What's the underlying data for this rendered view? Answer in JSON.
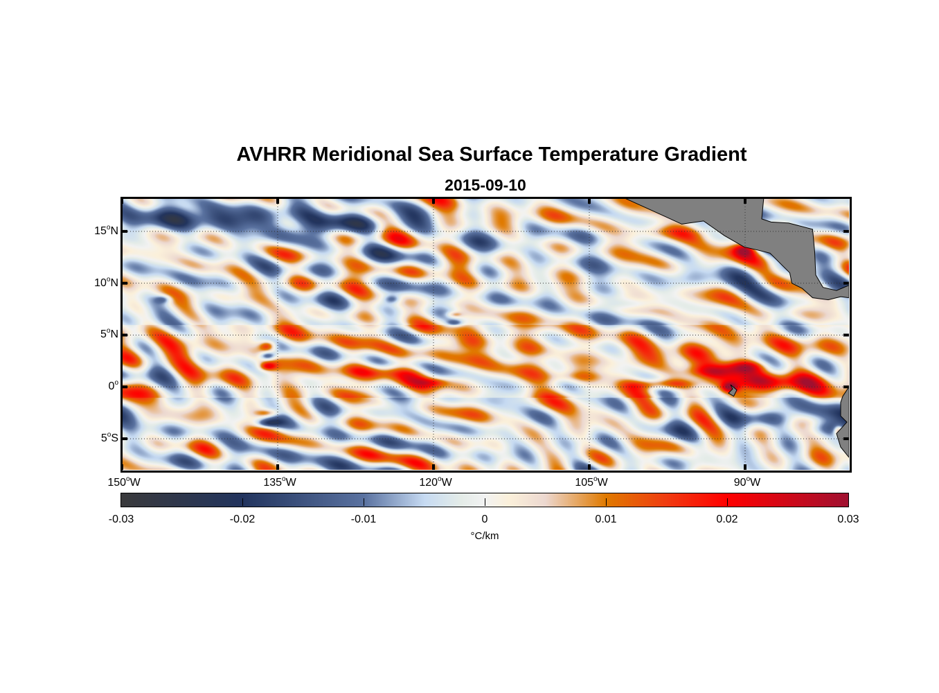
{
  "chart_data": {
    "type": "heatmap",
    "title": "AVHRR Meridional Sea Surface Temperature Gradient",
    "subtitle": "2015-09-10",
    "lon_range": [
      -150,
      -80
    ],
    "lat_range": [
      -8,
      18.2
    ],
    "xticks": [
      {
        "value": -150,
        "label": "150",
        "suffix": "W"
      },
      {
        "value": -135,
        "label": "135",
        "suffix": "W"
      },
      {
        "value": -120,
        "label": "120",
        "suffix": "W"
      },
      {
        "value": -105,
        "label": "105",
        "suffix": "W"
      },
      {
        "value": -90,
        "label": "90",
        "suffix": "W"
      }
    ],
    "yticks": [
      {
        "value": 15,
        "label": "15",
        "suffix": "N"
      },
      {
        "value": 10,
        "label": "10",
        "suffix": "N"
      },
      {
        "value": 5,
        "label": "5",
        "suffix": "N"
      },
      {
        "value": 0,
        "label": "0",
        "suffix": ""
      },
      {
        "value": -5,
        "label": "5",
        "suffix": "S"
      }
    ],
    "grid": "dotted",
    "colorbar": {
      "range": [
        -0.03,
        0.03
      ],
      "ticks": [
        "-0.03",
        "-0.02",
        "-0.01",
        "0",
        "0.01",
        "0.02",
        "0.03"
      ],
      "label": "°C/km",
      "colors": [
        [
          -0.03,
          "#3a3a3c"
        ],
        [
          -0.02,
          "#22345e"
        ],
        [
          -0.01,
          "#5a72a0"
        ],
        [
          -0.005,
          "#c6daf2"
        ],
        [
          -0.002,
          "#e4ece8"
        ],
        [
          0,
          "#f2f2f2"
        ],
        [
          0.002,
          "#fbf0da"
        ],
        [
          0.005,
          "#ecd8d0"
        ],
        [
          0.01,
          "#e07a00"
        ],
        [
          0.015,
          "#f03c10"
        ],
        [
          0.02,
          "#ff0000"
        ],
        [
          0.03,
          "#a01030"
        ]
      ]
    },
    "land_color": "#808080"
  }
}
